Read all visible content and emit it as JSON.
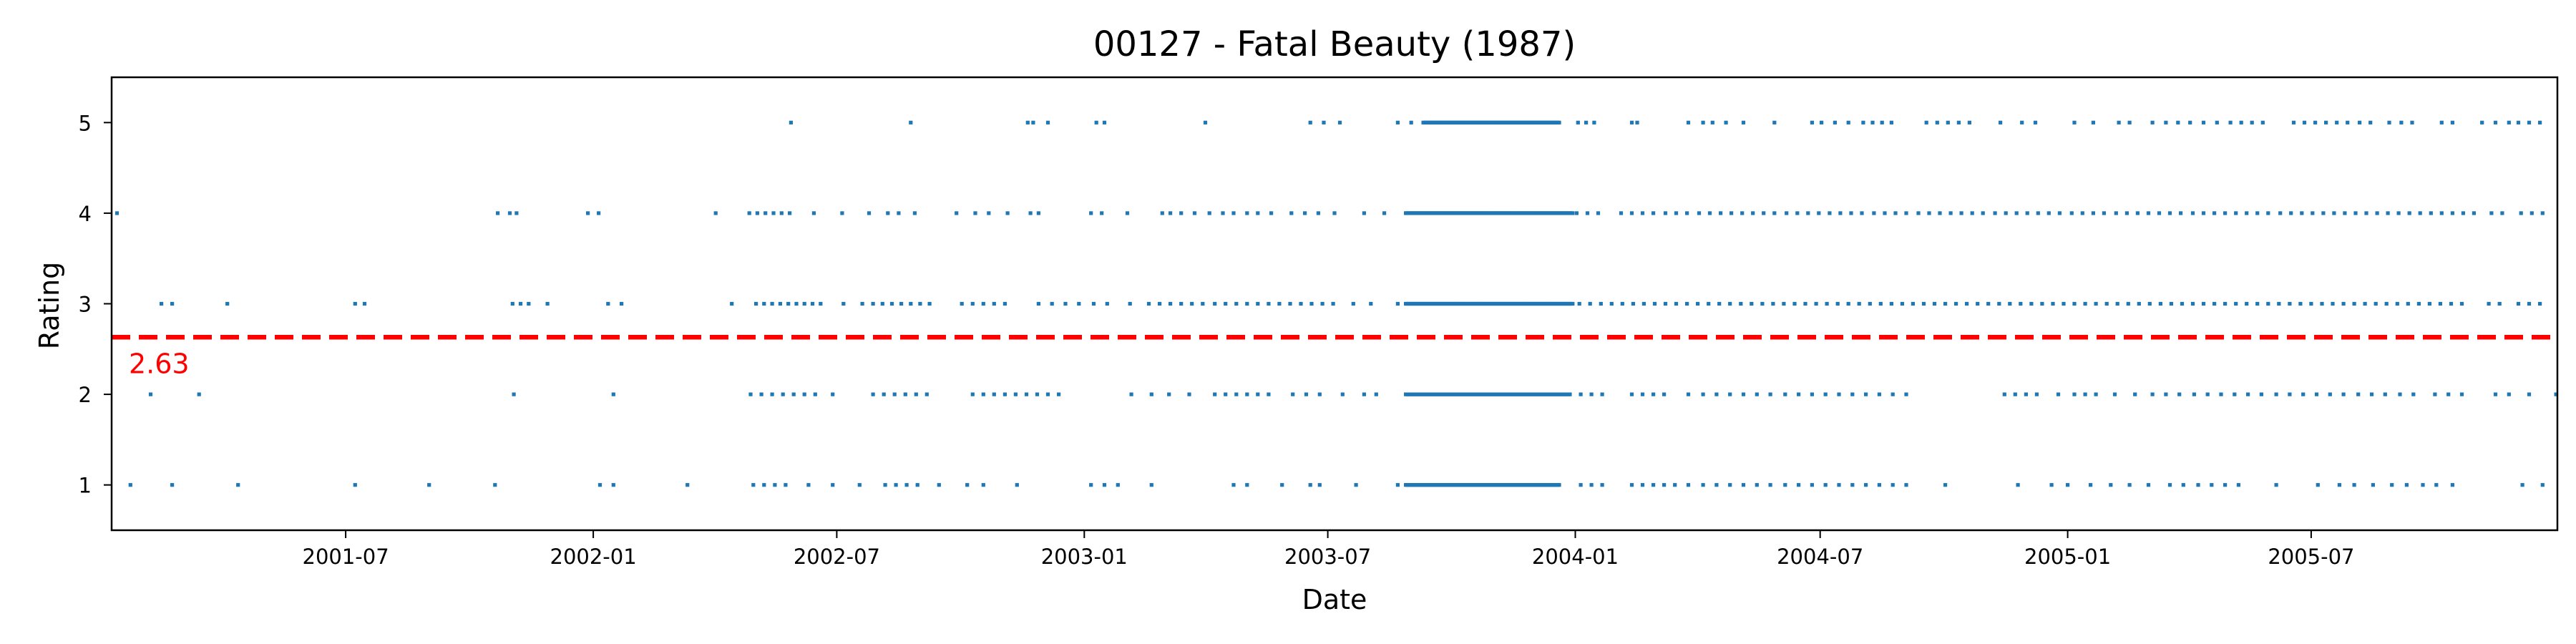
{
  "chart_data": {
    "type": "scatter",
    "title": "00127 - Fatal Beauty (1987)",
    "xlabel": "Date",
    "ylabel": "Rating",
    "xlim": [
      "2001-01-08",
      "2005-12-31"
    ],
    "ylim": [
      0.5,
      5.5
    ],
    "x_ticks": [
      "2001-07",
      "2002-01",
      "2002-07",
      "2003-01",
      "2003-07",
      "2004-01",
      "2004-07",
      "2005-01",
      "2005-07"
    ],
    "y_ticks": [
      "1",
      "2",
      "3",
      "4",
      "5"
    ],
    "grid": false,
    "point_color": "#1f77b4",
    "mean_line": {
      "value": 2.63,
      "label": "2.63",
      "color": "#ff0000",
      "style": "dashed"
    },
    "series": [
      {
        "rating_levels": [
          {
            "y": 5,
            "dense_intervals": [
              [
                "2003-09-10",
                "2003-12-20"
              ]
            ],
            "points": [
              "2002-05-28",
              "2002-08-25",
              "2002-11-20",
              "2002-11-24",
              "2002-12-05",
              "2003-01-10",
              "2003-01-16",
              "2003-04-01",
              "2003-06-18",
              "2003-06-28",
              "2003-07-10",
              "2003-08-22",
              "2003-09-01",
              "2004-01-03",
              "2004-01-09",
              "2004-01-15",
              "2004-02-12",
              "2004-02-16",
              "2004-03-25",
              "2004-04-05",
              "2004-04-12",
              "2004-04-22",
              "2004-05-05",
              "2004-05-28",
              "2004-06-25",
              "2004-07-02",
              "2004-07-12",
              "2004-07-22",
              "2004-08-02",
              "2004-08-09",
              "2004-08-16",
              "2004-08-23",
              "2004-09-18",
              "2004-09-26",
              "2004-10-04",
              "2004-10-12",
              "2004-10-20",
              "2004-11-12",
              "2004-11-28",
              "2004-12-08",
              "2005-01-06",
              "2005-01-20",
              "2005-02-08",
              "2005-02-16",
              "2005-03-05",
              "2005-03-15",
              "2005-03-24",
              "2005-04-02",
              "2005-04-12",
              "2005-04-22",
              "2005-05-02",
              "2005-05-10",
              "2005-05-18",
              "2005-05-26",
              "2005-06-18",
              "2005-06-26",
              "2005-07-04",
              "2005-07-12",
              "2005-07-20",
              "2005-07-28",
              "2005-08-06",
              "2005-08-14",
              "2005-08-28",
              "2005-09-06",
              "2005-09-14",
              "2005-10-06",
              "2005-10-14",
              "2005-11-05",
              "2005-11-15",
              "2005-11-25",
              "2005-12-02",
              "2005-12-10",
              "2005-12-18"
            ]
          },
          {
            "y": 4,
            "dense_intervals": [
              [
                "2003-08-28",
                "2003-12-30"
              ]
            ],
            "points": [
              "2001-01-12",
              "2001-10-22",
              "2001-10-31",
              "2001-11-05",
              "2001-12-28",
              "2002-01-05",
              "2002-04-02",
              "2002-04-27",
              "2002-05-03",
              "2002-05-09",
              "2002-05-15",
              "2002-05-21",
              "2002-05-27",
              "2002-06-14",
              "2002-07-05",
              "2002-07-25",
              "2002-08-08",
              "2002-08-16",
              "2002-08-28",
              "2002-09-28",
              "2002-10-12",
              "2002-10-22",
              "2002-11-05",
              "2002-11-22",
              "2002-11-28",
              "2003-01-06",
              "2003-01-14",
              "2003-02-02",
              "2003-02-28",
              "2003-03-06",
              "2003-03-14",
              "2003-03-24",
              "2003-04-04",
              "2003-04-14",
              "2003-04-22",
              "2003-05-02",
              "2003-05-10",
              "2003-05-20",
              "2003-06-04",
              "2003-06-14",
              "2003-06-24",
              "2003-07-06",
              "2003-07-28",
              "2003-08-12",
              "2004-01-02",
              "2004-01-10",
              "2004-01-18",
              "2004-02-04",
              "2004-02-12",
              "2004-02-20",
              "2004-02-28",
              "2004-03-08",
              "2004-03-16",
              "2004-03-24",
              "2004-04-02",
              "2004-04-10",
              "2004-04-18",
              "2004-04-26",
              "2004-05-04",
              "2004-05-12",
              "2004-05-20",
              "2004-05-28",
              "2004-06-06",
              "2004-06-14",
              "2004-06-22",
              "2004-06-30",
              "2004-07-08",
              "2004-07-16",
              "2004-07-24",
              "2004-08-01",
              "2004-08-10",
              "2004-08-18",
              "2004-08-26",
              "2004-09-03",
              "2004-09-12",
              "2004-09-20",
              "2004-09-28",
              "2004-10-06",
              "2004-10-14",
              "2004-10-22",
              "2004-10-30",
              "2004-11-08",
              "2004-11-16",
              "2004-11-24",
              "2004-12-02",
              "2004-12-10",
              "2004-12-18",
              "2004-12-26",
              "2005-01-04",
              "2005-01-12",
              "2005-01-20",
              "2005-01-28",
              "2005-02-06",
              "2005-02-14",
              "2005-02-22",
              "2005-03-02",
              "2005-03-10",
              "2005-03-18",
              "2005-03-26",
              "2005-04-04",
              "2005-04-12",
              "2005-04-20",
              "2005-04-28",
              "2005-05-06",
              "2005-05-14",
              "2005-05-22",
              "2005-05-30",
              "2005-06-08",
              "2005-06-16",
              "2005-06-24",
              "2005-07-02",
              "2005-07-10",
              "2005-07-18",
              "2005-07-26",
              "2005-08-03",
              "2005-08-11",
              "2005-08-19",
              "2005-08-27",
              "2005-09-04",
              "2005-09-12",
              "2005-09-20",
              "2005-09-28",
              "2005-10-06",
              "2005-10-14",
              "2005-10-22",
              "2005-10-30",
              "2005-11-12",
              "2005-11-20",
              "2005-12-04",
              "2005-12-12",
              "2005-12-20"
            ]
          },
          {
            "y": 3,
            "dense_intervals": [
              [
                "2003-08-28",
                "2003-12-30"
              ]
            ],
            "points": [
              "2001-02-14",
              "2001-02-22",
              "2001-04-04",
              "2001-07-08",
              "2001-07-15",
              "2001-11-02",
              "2001-11-08",
              "2001-11-14",
              "2001-11-28",
              "2002-01-12",
              "2002-01-22",
              "2002-04-14",
              "2002-05-02",
              "2002-05-08",
              "2002-05-14",
              "2002-05-20",
              "2002-05-26",
              "2002-06-01",
              "2002-06-07",
              "2002-06-13",
              "2002-06-19",
              "2002-07-06",
              "2002-07-20",
              "2002-07-28",
              "2002-08-04",
              "2002-08-11",
              "2002-08-18",
              "2002-08-25",
              "2002-09-01",
              "2002-09-08",
              "2002-10-02",
              "2002-10-10",
              "2002-10-18",
              "2002-10-26",
              "2002-11-03",
              "2002-11-28",
              "2002-12-08",
              "2002-12-18",
              "2002-12-28",
              "2003-01-08",
              "2003-01-18",
              "2003-02-04",
              "2003-02-18",
              "2003-02-26",
              "2003-03-06",
              "2003-03-14",
              "2003-03-22",
              "2003-03-30",
              "2003-04-08",
              "2003-04-16",
              "2003-04-24",
              "2003-05-02",
              "2003-05-10",
              "2003-05-18",
              "2003-05-26",
              "2003-06-03",
              "2003-06-11",
              "2003-06-19",
              "2003-06-27",
              "2003-07-05",
              "2003-07-20",
              "2003-08-02",
              "2003-08-22",
              "2004-01-04",
              "2004-01-12",
              "2004-01-20",
              "2004-01-28",
              "2004-02-05",
              "2004-02-13",
              "2004-02-21",
              "2004-02-29",
              "2004-03-08",
              "2004-03-16",
              "2004-03-24",
              "2004-04-01",
              "2004-04-09",
              "2004-04-17",
              "2004-04-25",
              "2004-05-03",
              "2004-05-11",
              "2004-05-19",
              "2004-05-27",
              "2004-06-04",
              "2004-06-12",
              "2004-06-20",
              "2004-06-28",
              "2004-07-06",
              "2004-07-14",
              "2004-07-22",
              "2004-07-30",
              "2004-08-07",
              "2004-08-15",
              "2004-08-23",
              "2004-08-31",
              "2004-09-08",
              "2004-09-16",
              "2004-09-24",
              "2004-10-02",
              "2004-10-10",
              "2004-10-18",
              "2004-10-26",
              "2004-11-03",
              "2004-11-11",
              "2004-11-19",
              "2004-11-27",
              "2004-12-05",
              "2004-12-13",
              "2004-12-21",
              "2004-12-29",
              "2005-01-06",
              "2005-01-14",
              "2005-01-22",
              "2005-01-30",
              "2005-02-07",
              "2005-02-15",
              "2005-02-23",
              "2005-03-03",
              "2005-03-11",
              "2005-03-19",
              "2005-03-27",
              "2005-04-04",
              "2005-04-12",
              "2005-04-20",
              "2005-04-28",
              "2005-05-06",
              "2005-05-14",
              "2005-05-22",
              "2005-05-30",
              "2005-06-07",
              "2005-06-15",
              "2005-06-23",
              "2005-07-01",
              "2005-07-09",
              "2005-07-17",
              "2005-07-25",
              "2005-08-02",
              "2005-08-10",
              "2005-08-18",
              "2005-08-26",
              "2005-09-03",
              "2005-09-11",
              "2005-09-19",
              "2005-09-27",
              "2005-10-05",
              "2005-10-13",
              "2005-10-21",
              "2005-11-10",
              "2005-11-18",
              "2005-12-02",
              "2005-12-10",
              "2005-12-18"
            ]
          },
          {
            "y": 2,
            "dense_intervals": [
              [
                "2003-08-28",
                "2003-12-28"
              ]
            ],
            "points": [
              "2001-02-06",
              "2001-03-14",
              "2001-11-03",
              "2002-01-16",
              "2002-04-28",
              "2002-05-06",
              "2002-05-14",
              "2002-05-22",
              "2002-05-30",
              "2002-06-07",
              "2002-06-15",
              "2002-06-28",
              "2002-07-28",
              "2002-08-05",
              "2002-08-13",
              "2002-08-21",
              "2002-08-29",
              "2002-09-06",
              "2002-10-10",
              "2002-10-18",
              "2002-10-26",
              "2002-11-03",
              "2002-11-11",
              "2002-11-19",
              "2002-11-27",
              "2002-12-05",
              "2002-12-13",
              "2003-02-05",
              "2003-02-20",
              "2003-03-05",
              "2003-03-20",
              "2003-04-08",
              "2003-04-16",
              "2003-04-24",
              "2003-05-02",
              "2003-05-10",
              "2003-05-18",
              "2003-06-05",
              "2003-06-15",
              "2003-06-25",
              "2003-07-12",
              "2003-07-28",
              "2003-08-06",
              "2004-01-05",
              "2004-01-13",
              "2004-01-21",
              "2004-02-12",
              "2004-02-20",
              "2004-02-28",
              "2004-03-07",
              "2004-03-25",
              "2004-04-05",
              "2004-04-15",
              "2004-04-25",
              "2004-05-05",
              "2004-05-15",
              "2004-05-25",
              "2004-06-05",
              "2004-06-15",
              "2004-06-25",
              "2004-07-05",
              "2004-07-15",
              "2004-07-25",
              "2004-08-04",
              "2004-08-14",
              "2004-08-24",
              "2004-09-03",
              "2004-11-15",
              "2004-11-23",
              "2004-12-01",
              "2004-12-09",
              "2004-12-25",
              "2005-01-06",
              "2005-01-14",
              "2005-01-22",
              "2005-02-05",
              "2005-02-20",
              "2005-03-05",
              "2005-03-15",
              "2005-03-25",
              "2005-04-05",
              "2005-04-15",
              "2005-04-25",
              "2005-05-05",
              "2005-05-15",
              "2005-05-25",
              "2005-06-05",
              "2005-06-15",
              "2005-06-25",
              "2005-07-05",
              "2005-07-15",
              "2005-07-25",
              "2005-08-05",
              "2005-08-15",
              "2005-08-25",
              "2005-09-05",
              "2005-09-15",
              "2005-10-01",
              "2005-10-11",
              "2005-10-21",
              "2005-11-15",
              "2005-11-25",
              "2005-12-10",
              "2005-12-30"
            ]
          },
          {
            "y": 1,
            "dense_intervals": [
              [
                "2003-08-28",
                "2003-12-20"
              ]
            ],
            "points": [
              "2001-01-22",
              "2001-02-22",
              "2001-04-12",
              "2001-07-08",
              "2001-09-01",
              "2001-10-20",
              "2002-01-06",
              "2002-01-16",
              "2002-03-12",
              "2002-04-30",
              "2002-05-08",
              "2002-05-16",
              "2002-05-24",
              "2002-06-10",
              "2002-06-28",
              "2002-07-18",
              "2002-08-06",
              "2002-08-14",
              "2002-08-22",
              "2002-08-30",
              "2002-09-15",
              "2002-10-06",
              "2002-10-18",
              "2002-11-12",
              "2003-01-06",
              "2003-01-16",
              "2003-01-26",
              "2003-02-20",
              "2003-04-22",
              "2003-05-02",
              "2003-05-28",
              "2003-06-18",
              "2003-06-25",
              "2003-07-22",
              "2003-08-22",
              "2004-01-05",
              "2004-01-13",
              "2004-01-21",
              "2004-02-12",
              "2004-02-20",
              "2004-02-28",
              "2004-03-07",
              "2004-03-15",
              "2004-03-25",
              "2004-04-05",
              "2004-04-15",
              "2004-04-25",
              "2004-05-05",
              "2004-05-15",
              "2004-05-25",
              "2004-06-05",
              "2004-06-15",
              "2004-06-25",
              "2004-07-05",
              "2004-07-15",
              "2004-07-25",
              "2004-08-04",
              "2004-08-14",
              "2004-08-24",
              "2004-09-03",
              "2004-10-02",
              "2004-11-25",
              "2004-12-20",
              "2005-01-01",
              "2005-01-18",
              "2005-02-02",
              "2005-02-16",
              "2005-03-02",
              "2005-03-18",
              "2005-03-28",
              "2005-04-08",
              "2005-04-18",
              "2005-04-28",
              "2005-05-08",
              "2005-06-05",
              "2005-07-06",
              "2005-07-22",
              "2005-08-02",
              "2005-08-16",
              "2005-08-30",
              "2005-09-10",
              "2005-09-22",
              "2005-10-02",
              "2005-10-14",
              "2005-12-05",
              "2005-12-20"
            ]
          }
        ]
      }
    ]
  }
}
